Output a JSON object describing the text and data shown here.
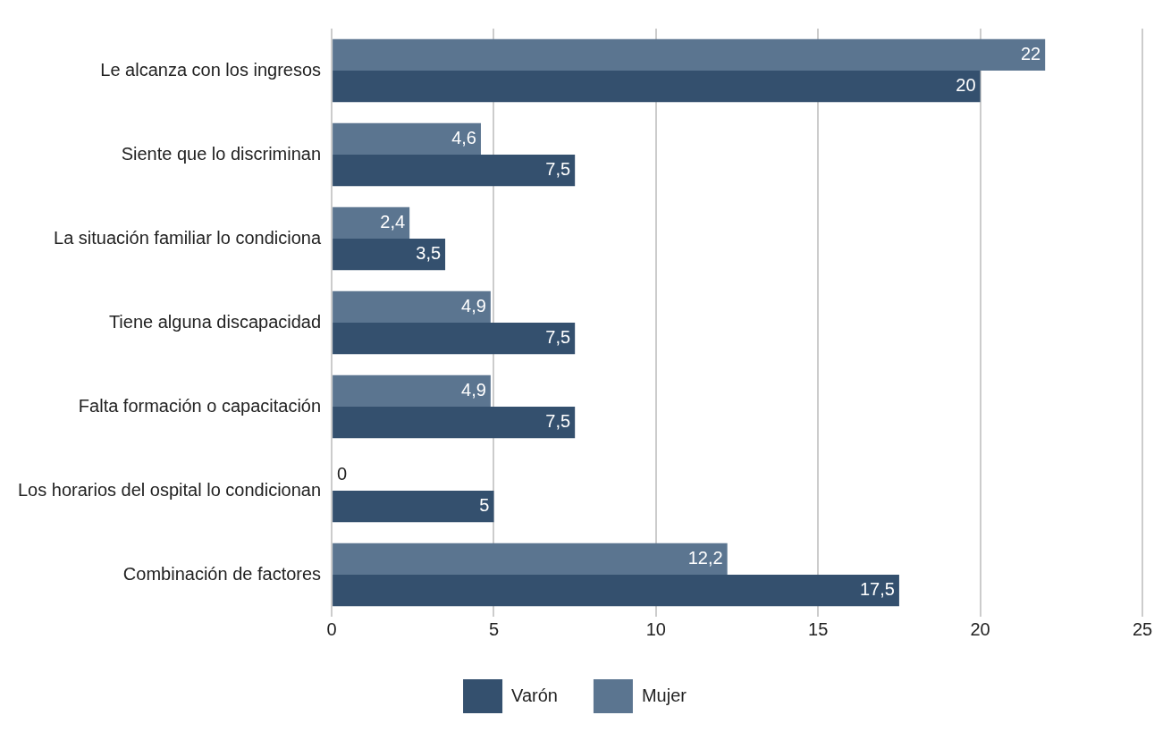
{
  "chart_data": {
    "type": "bar",
    "orientation": "horizontal",
    "categories": [
      "Le alcanza con los ingresos",
      "Siente que lo discriminan",
      "La situación familiar lo condiciona",
      "Tiene alguna discapacidad",
      "Falta formación o capacitación",
      "Los horarios del ospital lo condicionan",
      "Combinación de factores"
    ],
    "series": [
      {
        "name": "Varón",
        "color": "#34506e",
        "values": [
          20,
          7.5,
          3.5,
          7.5,
          7.5,
          5,
          17.5
        ],
        "value_labels": [
          "20",
          "7,5",
          "3,5",
          "7,5",
          "7,5",
          "5",
          "17,5"
        ]
      },
      {
        "name": "Mujer",
        "color": "#5b7590",
        "values": [
          22,
          4.6,
          2.4,
          4.9,
          4.9,
          0,
          12.2
        ],
        "value_labels": [
          "22",
          "4,6",
          "2,4",
          "4,9",
          "4,9",
          "0",
          "12,2"
        ]
      }
    ],
    "xlim": [
      0,
      25
    ],
    "xticks": [
      0,
      5,
      10,
      15,
      20,
      25
    ],
    "grid": "x",
    "legend": "bottom"
  }
}
